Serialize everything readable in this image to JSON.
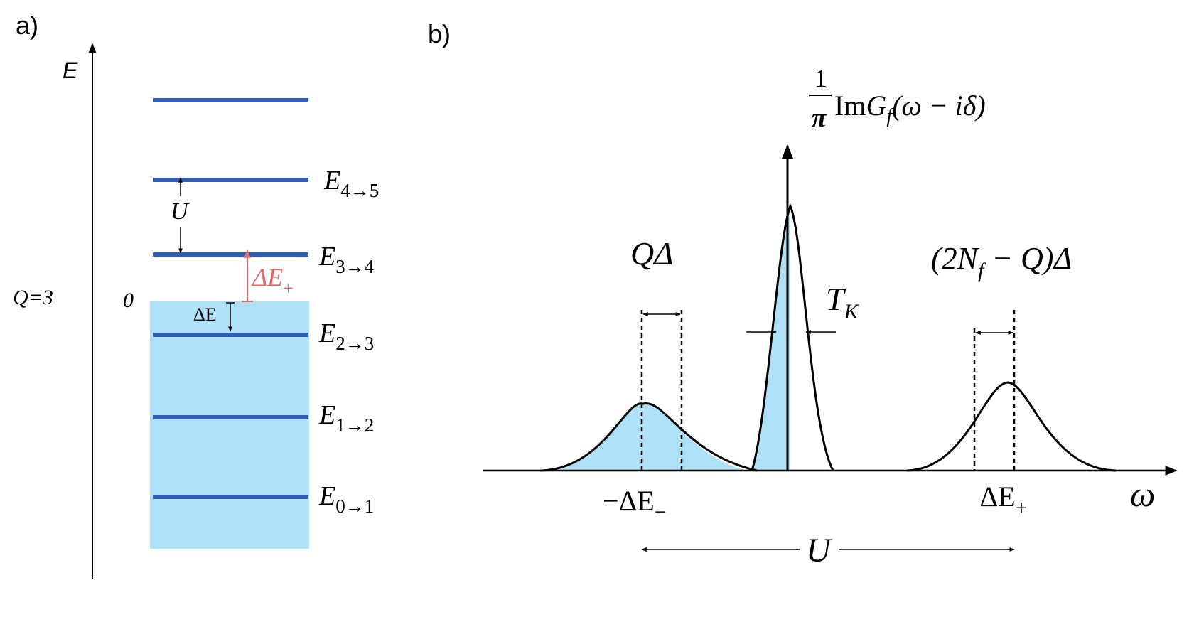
{
  "panel_a": {
    "label": "a)",
    "axis_label": "E",
    "q_label": "Q=3",
    "zero_label": "0",
    "u_label": "U",
    "delta_e_label": "ΔE",
    "delta_e_plus": {
      "base": "ΔE",
      "sub": "+"
    },
    "levels": [
      {
        "base": "E",
        "sub": "4→5"
      },
      {
        "base": "E",
        "sub": "3→4"
      },
      {
        "base": "E",
        "sub": "2→3"
      },
      {
        "base": "E",
        "sub": "1→2"
      },
      {
        "base": "E",
        "sub": "0→1"
      }
    ]
  },
  "panel_b": {
    "label": "b)",
    "y_label": {
      "frac_num": "1",
      "frac_den": "π",
      "im": "Im",
      "g": "G",
      "g_sub": "f",
      "args": "(ω − iδ)"
    },
    "x_label": "ω",
    "left_width": "QΔ",
    "right_width": {
      "pre": "(2N",
      "sub": "f",
      "post": " − Q)Δ"
    },
    "center_width": {
      "base": "T",
      "sub": "K"
    },
    "left_pos": {
      "base": "−ΔE",
      "sub": "−"
    },
    "right_pos": {
      "base": "ΔE",
      "sub": "+"
    },
    "span_label": "U"
  },
  "colors": {
    "level_blue": "#2f5fb8",
    "fill_blue": "#aee0f8",
    "red": "#e06a6a",
    "black": "#000000"
  }
}
